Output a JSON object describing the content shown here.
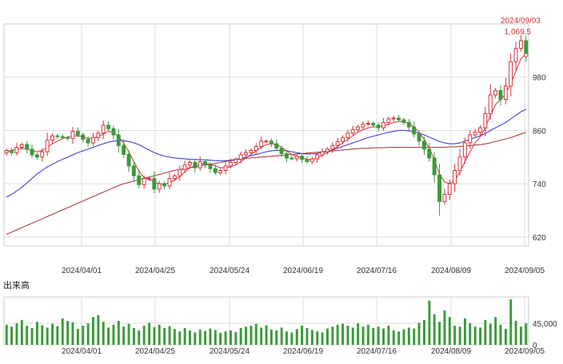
{
  "chart_data": [
    {
      "type": "candlestick",
      "x_start": "2024-03-15",
      "x_end": "2024-09-05",
      "ylim": [
        600,
        1100
      ],
      "yticks": [
        620,
        740,
        860,
        980
      ],
      "ytick_labels": [
        "620",
        "740",
        "860",
        "980"
      ],
      "xticks": [
        "2024/04/01",
        "2024/04/25",
        "2024/05/24",
        "2024/06/19",
        "2024/07/16",
        "2024/08/09",
        "2024/09/05"
      ],
      "grid": true,
      "annotation": {
        "date": "2024/09/03",
        "value_label": "1,069.5",
        "value": 1069.5
      },
      "colors": {
        "up": "#d8323c",
        "down": "#3a9a3a",
        "ma_short": "#d8323c",
        "ma_mid": "#2f2fd0",
        "ma_long": "#a03030"
      },
      "closes": [
        815,
        810,
        822,
        828,
        818,
        805,
        800,
        812,
        838,
        848,
        846,
        844,
        842,
        858,
        850,
        840,
        832,
        844,
        854,
        872,
        864,
        850,
        826,
        806,
        780,
        758,
        738,
        752,
        752,
        728,
        740,
        735,
        752,
        758,
        772,
        782,
        788,
        776,
        790,
        782,
        774,
        765,
        770,
        780,
        788,
        795,
        805,
        810,
        815,
        824,
        836,
        836,
        830,
        820,
        808,
        798,
        796,
        802,
        795,
        790,
        796,
        805,
        812,
        818,
        826,
        835,
        844,
        854,
        862,
        868,
        874,
        876,
        872,
        866,
        878,
        886,
        888,
        884,
        878,
        868,
        852,
        836,
        818,
        798,
        760,
        700,
        716,
        740,
        770,
        800,
        832,
        850,
        856,
        866,
        898,
        940,
        950,
        930,
        960,
        1015,
        1045,
        1062,
        1030
      ],
      "ma_short": [
        812,
        815,
        818,
        820,
        818,
        815,
        812,
        815,
        822,
        830,
        836,
        842,
        845,
        848,
        848,
        846,
        842,
        843,
        846,
        852,
        858,
        856,
        846,
        832,
        812,
        790,
        768,
        754,
        750,
        744,
        740,
        740,
        742,
        748,
        756,
        766,
        776,
        780,
        784,
        786,
        784,
        780,
        776,
        776,
        778,
        782,
        790,
        798,
        806,
        814,
        822,
        828,
        830,
        828,
        822,
        814,
        806,
        802,
        798,
        795,
        794,
        798,
        804,
        810,
        816,
        824,
        832,
        840,
        848,
        856,
        862,
        866,
        868,
        868,
        870,
        874,
        878,
        880,
        880,
        876,
        868,
        856,
        840,
        820,
        794,
        762,
        744,
        740,
        748,
        766,
        790,
        812,
        832,
        846,
        866,
        894,
        918,
        930,
        942,
        966,
        994,
        1022,
        1032
      ],
      "ma_mid": [
        710,
        716,
        724,
        732,
        742,
        752,
        762,
        770,
        778,
        784,
        790,
        795,
        800,
        805,
        810,
        814,
        818,
        822,
        826,
        830,
        834,
        836,
        837,
        837,
        835,
        832,
        828,
        822,
        816,
        810,
        806,
        802,
        800,
        798,
        797,
        796,
        795,
        795,
        794,
        794,
        793,
        792,
        792,
        792,
        793,
        795,
        797,
        800,
        803,
        806,
        809,
        812,
        814,
        815,
        815,
        814,
        812,
        810,
        808,
        807,
        807,
        808,
        810,
        813,
        816,
        820,
        824,
        828,
        832,
        836,
        840,
        844,
        847,
        850,
        853,
        856,
        858,
        860,
        860,
        859,
        857,
        854,
        850,
        845,
        840,
        835,
        832,
        830,
        830,
        832,
        836,
        840,
        844,
        848,
        853,
        860,
        866,
        872,
        878,
        886,
        894,
        902,
        908
      ],
      "ma_long": [
        626,
        631,
        636,
        641,
        646,
        651,
        656,
        661,
        666,
        671,
        676,
        681,
        686,
        691,
        696,
        701,
        706,
        711,
        716,
        721,
        726,
        731,
        736,
        740,
        743,
        746,
        749,
        752,
        755,
        758,
        761,
        764,
        767,
        770,
        772,
        774,
        776,
        778,
        780,
        782,
        784,
        786,
        788,
        790,
        792,
        794,
        796,
        797,
        798,
        799,
        800,
        801,
        802,
        803,
        804,
        805,
        806,
        807,
        808,
        809,
        810,
        811,
        812,
        813,
        814,
        815,
        816,
        817,
        818,
        819,
        820,
        820,
        821,
        821,
        821,
        822,
        822,
        822,
        822,
        822,
        822,
        822,
        822,
        822,
        822,
        822,
        822,
        823,
        823,
        824,
        825,
        826,
        827,
        828,
        830,
        832,
        835,
        838,
        841,
        844,
        848,
        852,
        856
      ]
    },
    {
      "type": "bar",
      "title": "出来高",
      "ylim": [
        0,
        100000
      ],
      "yticks": [
        0,
        45000
      ],
      "ytick_labels": [
        "0",
        "45,000"
      ],
      "xticks": [
        "2024/04/01",
        "2024/04/25",
        "2024/05/24",
        "2024/06/19",
        "2024/07/16",
        "2024/08/09",
        "2024/09/05"
      ],
      "color": "#3a9a3a",
      "values": [
        42000,
        38000,
        45000,
        52000,
        40000,
        35000,
        48000,
        41000,
        36000,
        44000,
        39000,
        55000,
        50000,
        47000,
        33000,
        40000,
        45000,
        58000,
        62000,
        48000,
        36000,
        42000,
        50000,
        38000,
        44000,
        35000,
        30000,
        40000,
        46000,
        37000,
        42000,
        35000,
        39000,
        33000,
        28000,
        35000,
        30000,
        26000,
        32000,
        29000,
        34000,
        31000,
        25000,
        28000,
        30000,
        27000,
        35000,
        38000,
        40000,
        44000,
        36000,
        41000,
        32000,
        30000,
        36000,
        28000,
        26000,
        33000,
        40000,
        35000,
        31000,
        28000,
        26000,
        34000,
        38000,
        42000,
        44000,
        40000,
        36000,
        45000,
        38000,
        42000,
        35000,
        38000,
        34000,
        40000,
        30000,
        28000,
        32000,
        36000,
        34000,
        46000,
        52000,
        92000,
        64000,
        48000,
        72000,
        58000,
        40000,
        38000,
        55000,
        45000,
        38000,
        36000,
        52000,
        44000,
        58000,
        42000,
        33000,
        95000,
        50000,
        38000,
        45000
      ]
    }
  ]
}
